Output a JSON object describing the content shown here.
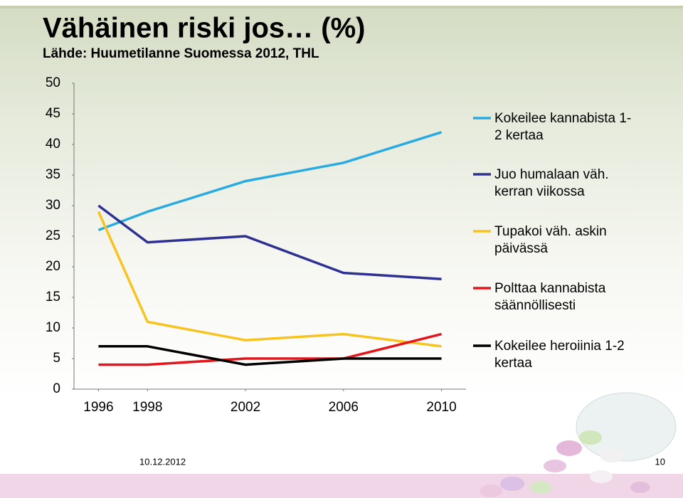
{
  "chart_data": {
    "type": "line",
    "title": "Vähäinen riski jos… (%)",
    "subtitle": "Lähde: Huumetilanne Suomessa 2012, THL",
    "x": [
      1996,
      1998,
      2002,
      2006,
      2010
    ],
    "xlim": [
      1995,
      2011
    ],
    "xticks": [
      1996,
      1998,
      2002,
      2006,
      2010
    ],
    "ylim": [
      0,
      50
    ],
    "yticks": [
      0,
      5,
      10,
      15,
      20,
      25,
      30,
      35,
      40,
      45,
      50
    ],
    "grid": false,
    "legend": "right",
    "series": [
      {
        "name": "Kokeilee kannabista 1-2 kertaa",
        "color": "#29abe2",
        "values": [
          26,
          29,
          34,
          37,
          42
        ]
      },
      {
        "name": "Juo humalaan väh. kerran viikossa",
        "color": "#2e3192",
        "values": [
          30,
          24,
          25,
          19,
          18
        ]
      },
      {
        "name": "Tupakoi väh. askin päivässä",
        "color": "#f9c31f",
        "values": [
          29,
          11,
          8,
          9,
          7
        ]
      },
      {
        "name": "Polttaa kannabista säännöllisesti",
        "color": "#e3161c",
        "values": [
          4,
          4,
          5,
          5,
          9
        ]
      },
      {
        "name": "Kokeilee heroiinia 1-2 kertaa",
        "color": "#000000",
        "values": [
          7,
          7,
          4,
          5,
          5
        ]
      }
    ]
  },
  "footer": {
    "date": "10.12.2012",
    "page": "10"
  }
}
